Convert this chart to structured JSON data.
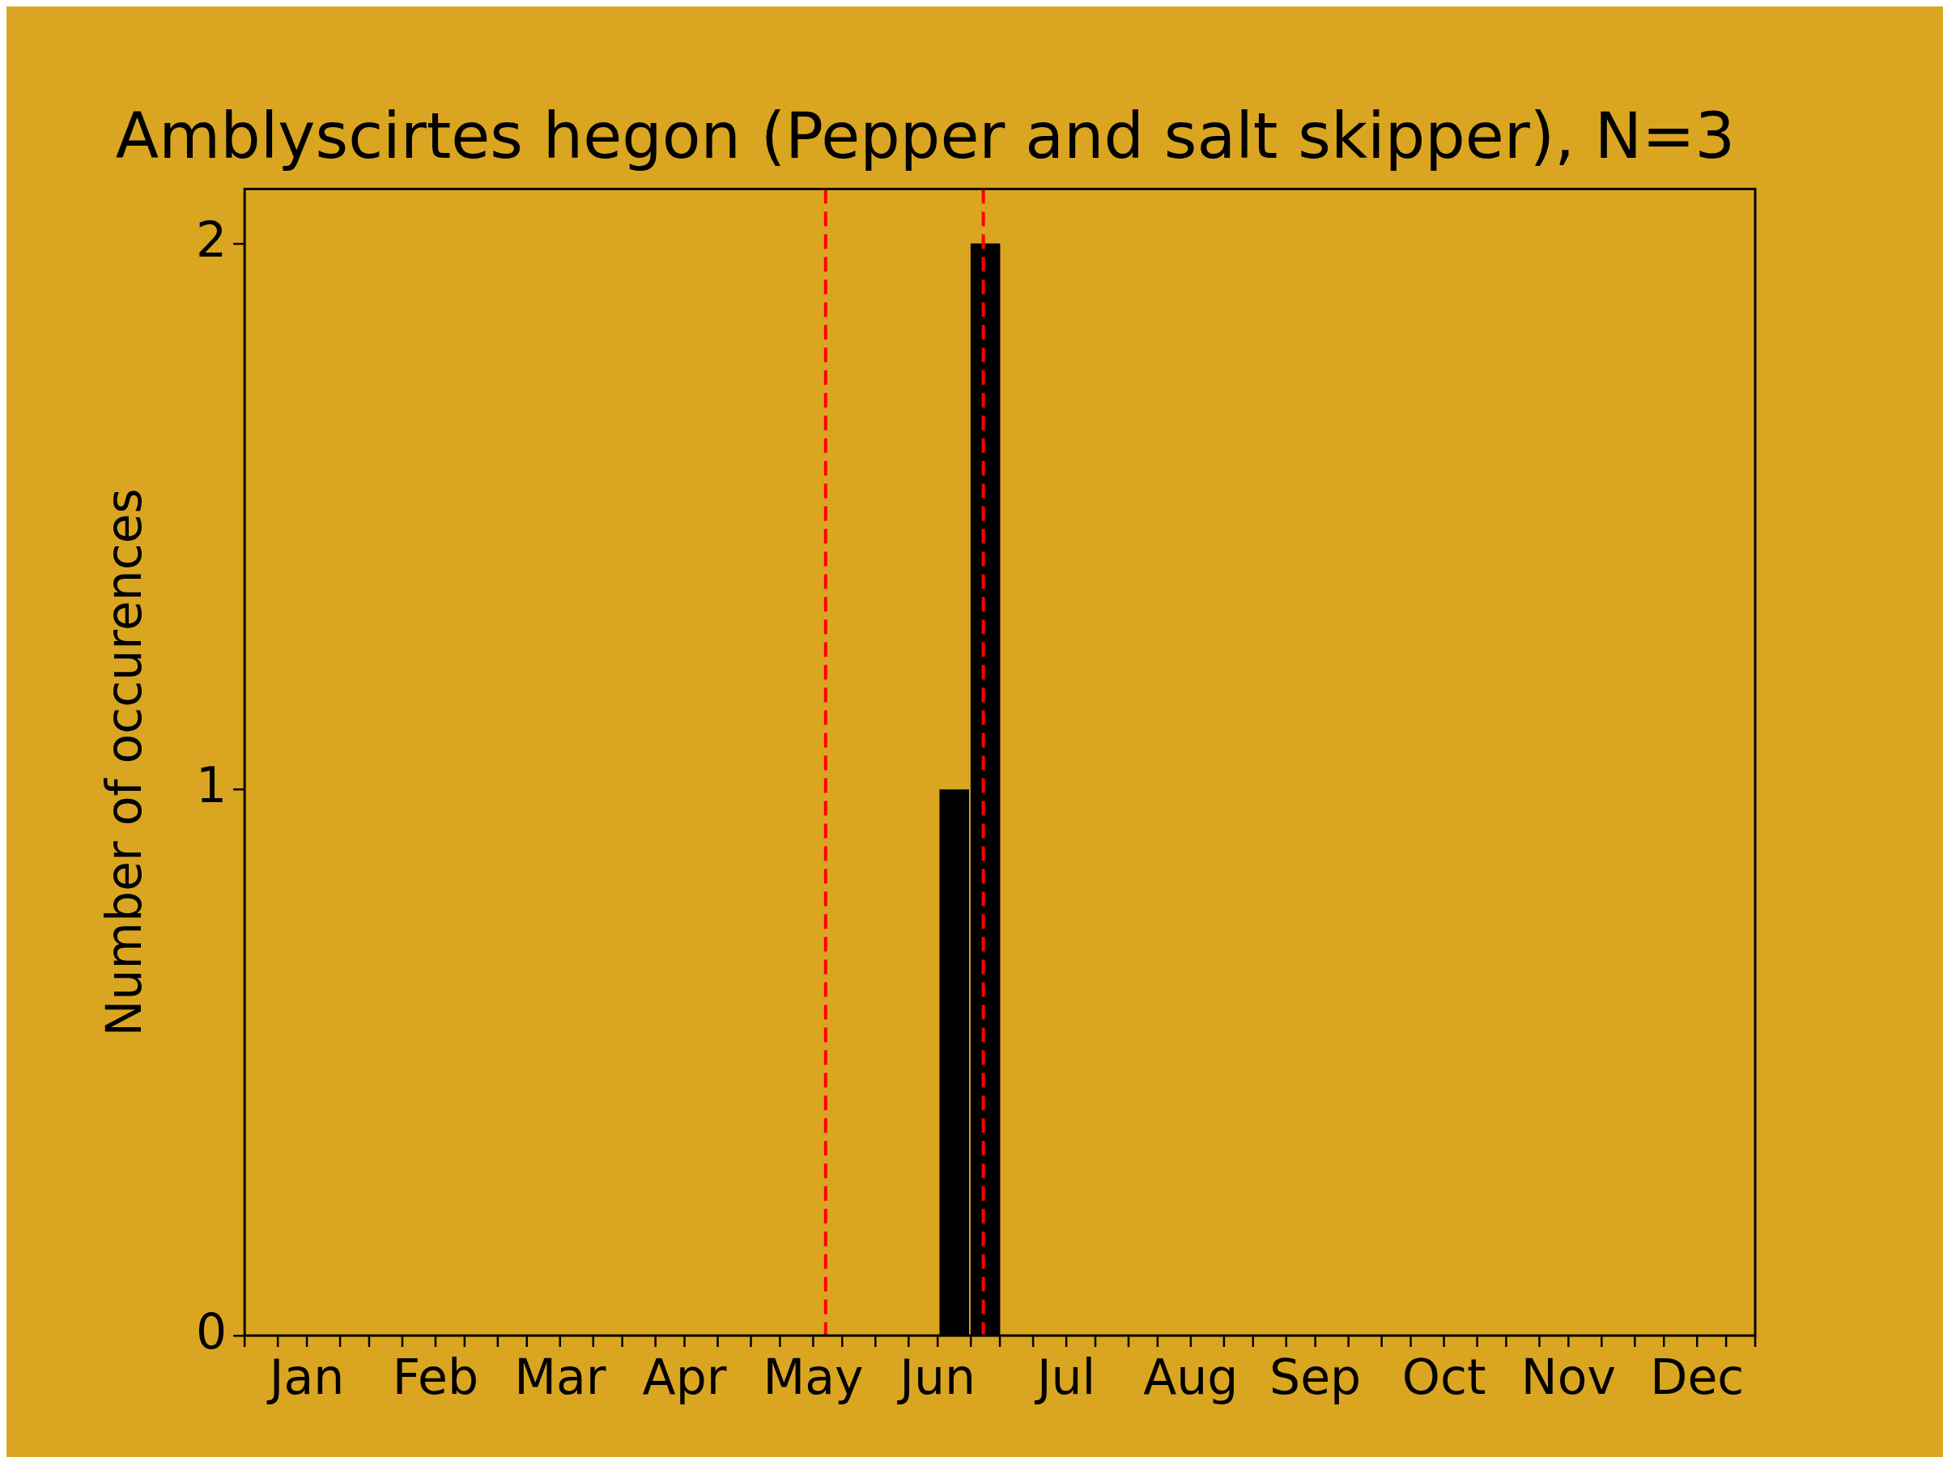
{
  "chart_data": {
    "type": "histogram",
    "title": "Amblyscirtes hegon (Pepper and salt skipper), N=3",
    "ylabel": "Number of occurences",
    "bins": [
      "--06-17",
      "--06-25",
      "--07-02"
    ],
    "values": [
      1,
      2
    ],
    "color": "#000000",
    "xlim": [
      "--01-01",
      "--12-31"
    ],
    "xticks": [
      {
        "value": "--01-01",
        "label": null
      },
      {
        "value": "--01-09",
        "label": null
      },
      {
        "value": "--01-16",
        "label": "Jan"
      },
      {
        "value": "--01-24",
        "label": null
      },
      {
        "value": "--01-31",
        "label": null
      },
      {
        "value": "--02-08",
        "label": null
      },
      {
        "value": "--02-16",
        "label": "Feb"
      },
      {
        "value": "--02-23",
        "label": null
      },
      {
        "value": "--03-03",
        "label": null
      },
      {
        "value": "--03-10",
        "label": null
      },
      {
        "value": "--03-18",
        "label": "Mar"
      },
      {
        "value": "--03-26",
        "label": null
      },
      {
        "value": "--04-02",
        "label": null
      },
      {
        "value": "--04-10",
        "label": null
      },
      {
        "value": "--04-17",
        "label": "Apr"
      },
      {
        "value": "--04-25",
        "label": null
      },
      {
        "value": "--05-03",
        "label": null
      },
      {
        "value": "--05-10",
        "label": null
      },
      {
        "value": "--05-18",
        "label": "May"
      },
      {
        "value": "--05-25",
        "label": null
      },
      {
        "value": "--06-02",
        "label": null
      },
      {
        "value": "--06-10",
        "label": null
      },
      {
        "value": "--06-17",
        "label": "Jun"
      },
      {
        "value": "--06-25",
        "label": null
      },
      {
        "value": "--07-02",
        "label": null
      },
      {
        "value": "--07-10",
        "label": null
      },
      {
        "value": "--07-18",
        "label": "Jul"
      },
      {
        "value": "--07-25",
        "label": null
      },
      {
        "value": "--08-02",
        "label": null
      },
      {
        "value": "--08-09",
        "label": null
      },
      {
        "value": "--08-17",
        "label": "Aug"
      },
      {
        "value": "--08-25",
        "label": null
      },
      {
        "value": "--09-01",
        "label": null
      },
      {
        "value": "--09-09",
        "label": null
      },
      {
        "value": "--09-16",
        "label": "Sep"
      },
      {
        "value": "--09-24",
        "label": null
      },
      {
        "value": "--10-02",
        "label": null
      },
      {
        "value": "--10-09",
        "label": null
      },
      {
        "value": "--10-17",
        "label": "Oct"
      },
      {
        "value": "--10-25",
        "label": null
      },
      {
        "value": "--11-01",
        "label": null
      },
      {
        "value": "--11-09",
        "label": null
      },
      {
        "value": "--11-16",
        "label": "Nov"
      },
      {
        "value": "--11-24",
        "label": null
      },
      {
        "value": "--12-02",
        "label": null
      },
      {
        "value": "--12-09",
        "label": null
      },
      {
        "value": "--12-17",
        "label": "Dec"
      },
      {
        "value": "--12-24",
        "label": null
      },
      {
        "value": "--12-31",
        "label": null
      }
    ],
    "ylim": [
      0,
      2.1
    ],
    "yticks": [
      0,
      1,
      2
    ],
    "grid": false,
    "legend": false,
    "ref_lines": [
      {
        "axis": "x",
        "value": "--05-21",
        "color": "#ff0000",
        "line_style": "dashed"
      },
      {
        "axis": "x",
        "value": "--06-28",
        "color": "#ff0000",
        "line_style": "dashed"
      }
    ]
  }
}
